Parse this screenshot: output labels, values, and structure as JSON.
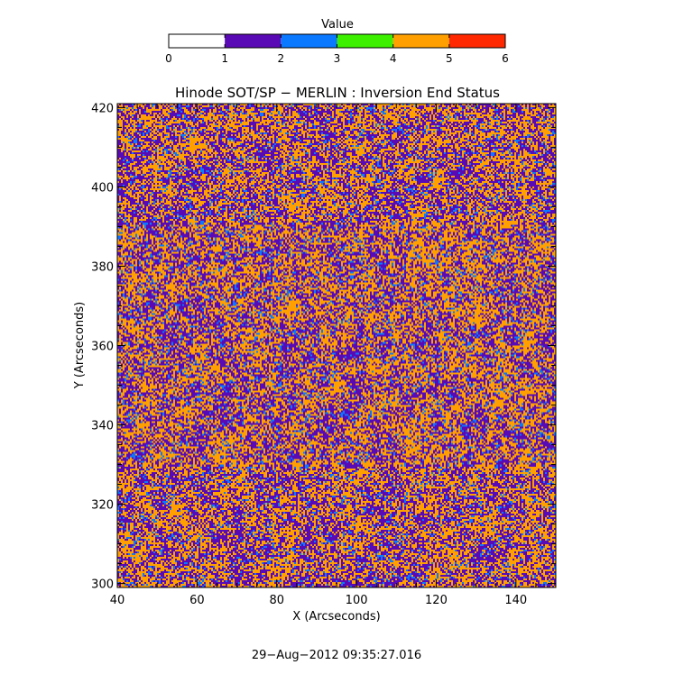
{
  "chart_data": {
    "type": "heatmap",
    "title": "Hinode SOT/SP − MERLIN : Inversion End Status",
    "xlabel": "X (Arcseconds)",
    "ylabel": "Y (Arcseconds)",
    "xlim": [
      40,
      150
    ],
    "ylim": [
      299,
      421
    ],
    "xticks": [
      40,
      60,
      80,
      100,
      120,
      140
    ],
    "yticks": [
      300,
      320,
      340,
      360,
      380,
      400,
      420
    ],
    "colorbar": {
      "label": "Value",
      "range": [
        0,
        6
      ],
      "ticks": [
        0,
        1,
        2,
        3,
        4,
        5,
        6
      ],
      "bins": [
        {
          "from": 0,
          "to": 1,
          "color": "#ffffff"
        },
        {
          "from": 1,
          "to": 2,
          "color": "#5a0ab4"
        },
        {
          "from": 2,
          "to": 3,
          "color": "#0a78ff"
        },
        {
          "from": 3,
          "to": 4,
          "color": "#3cf000"
        },
        {
          "from": 4,
          "to": 5,
          "color": "#ffa000"
        },
        {
          "from": 5,
          "to": 6,
          "color": "#ff2800"
        }
      ]
    },
    "dominant_values": [
      {
        "value": 1,
        "share": 0.44
      },
      {
        "value": 4,
        "share": 0.48
      },
      {
        "value": 2,
        "share": 0.08
      }
    ]
  },
  "timestamp": "29−Aug−2012 09:35:27.016"
}
